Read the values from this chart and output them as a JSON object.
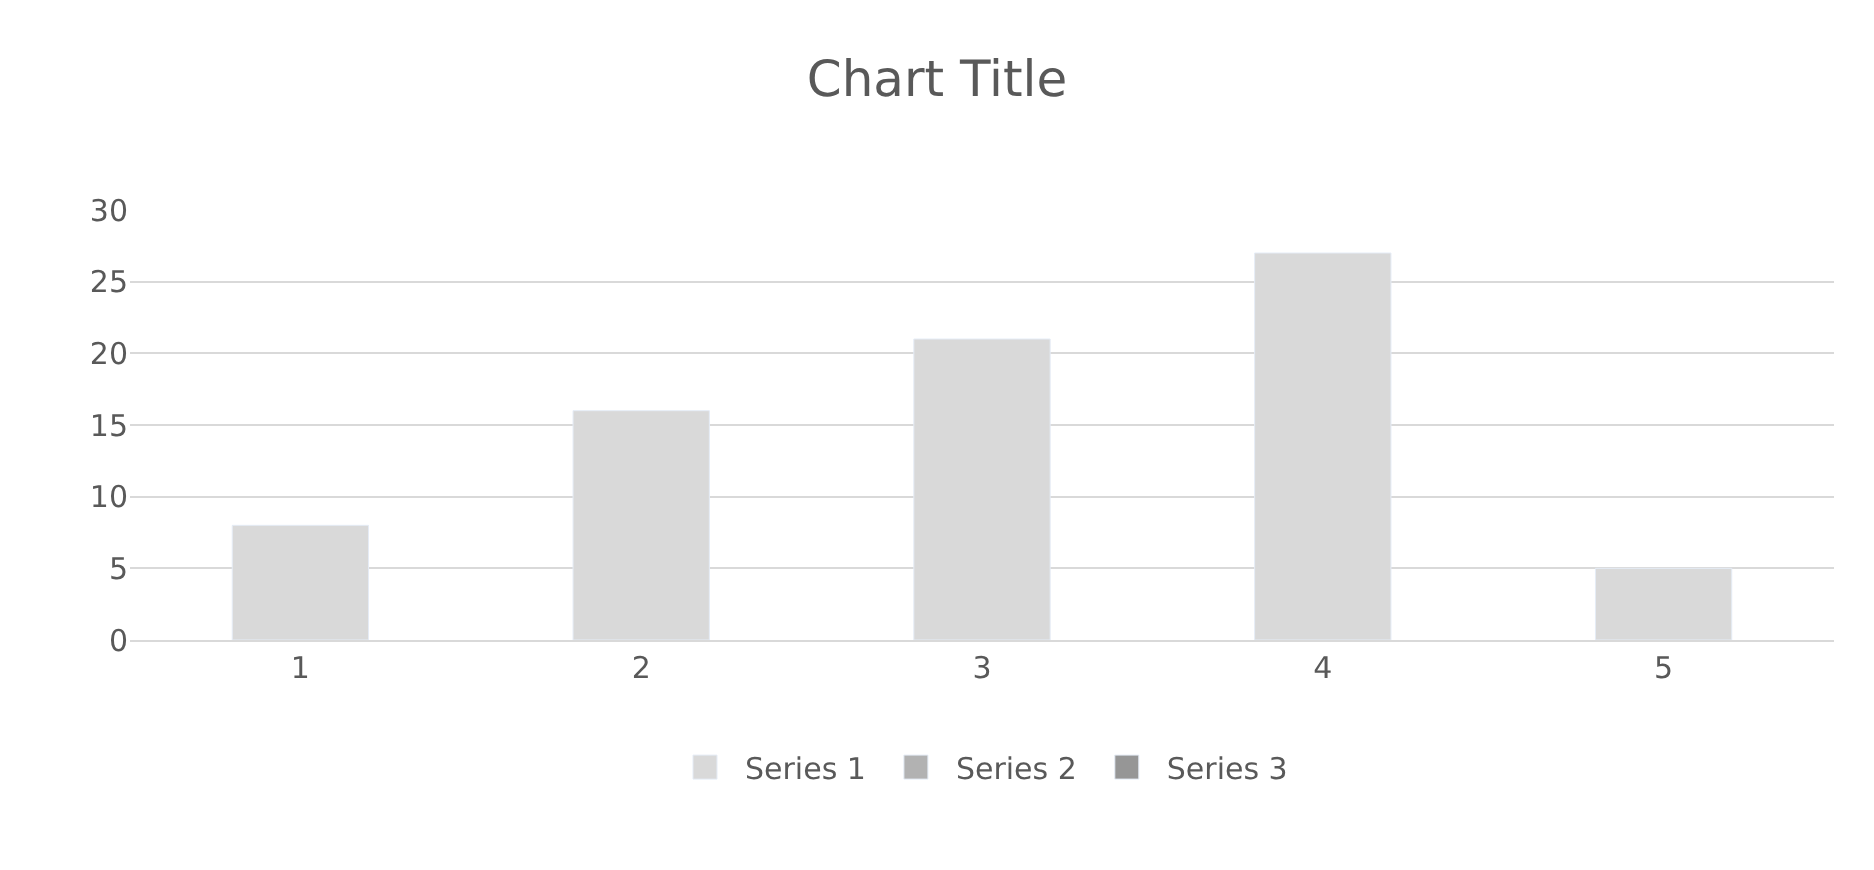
{
  "chart_data": {
    "type": "bar",
    "title": "Chart Title",
    "categories": [
      "1",
      "2",
      "3",
      "4",
      "5"
    ],
    "series": [
      {
        "name": "Series 1",
        "color": "#d9d9d9",
        "values": [
          8,
          16,
          21,
          27,
          5
        ]
      },
      {
        "name": "Series 2",
        "color": "#b2b2b2",
        "values": [
          null,
          null,
          null,
          null,
          null
        ]
      },
      {
        "name": "Series 3",
        "color": "#969696",
        "values": [
          null,
          null,
          null,
          null,
          null
        ]
      }
    ],
    "ylim": [
      0,
      30
    ],
    "yticks": [
      0,
      5,
      10,
      15,
      20,
      25,
      30
    ],
    "grid": "y",
    "legend": "bottom"
  }
}
